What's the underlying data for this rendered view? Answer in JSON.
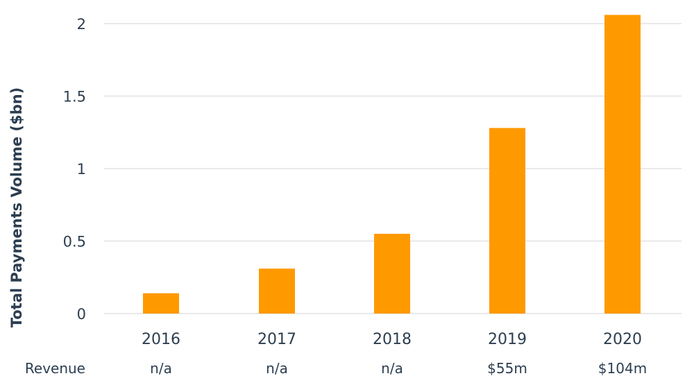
{
  "chart_data": {
    "type": "bar",
    "title": "",
    "xlabel": "",
    "ylabel": "Total Payments Volume ($bn)",
    "categories": [
      "2016",
      "2017",
      "2018",
      "2019",
      "2020"
    ],
    "values": [
      0.14,
      0.31,
      0.55,
      1.28,
      2.06
    ],
    "ylim": [
      0,
      2
    ],
    "yticks": [
      0,
      0.5,
      1,
      1.5,
      2
    ],
    "ytick_labels": [
      "0",
      "0.5",
      "1",
      "1.5",
      "2"
    ],
    "grid": true,
    "bar_color": "#ff9900",
    "revenue_row": {
      "label": "Revenue",
      "values": [
        "n/a",
        "n/a",
        "n/a",
        "$55m",
        "$104m"
      ]
    }
  }
}
